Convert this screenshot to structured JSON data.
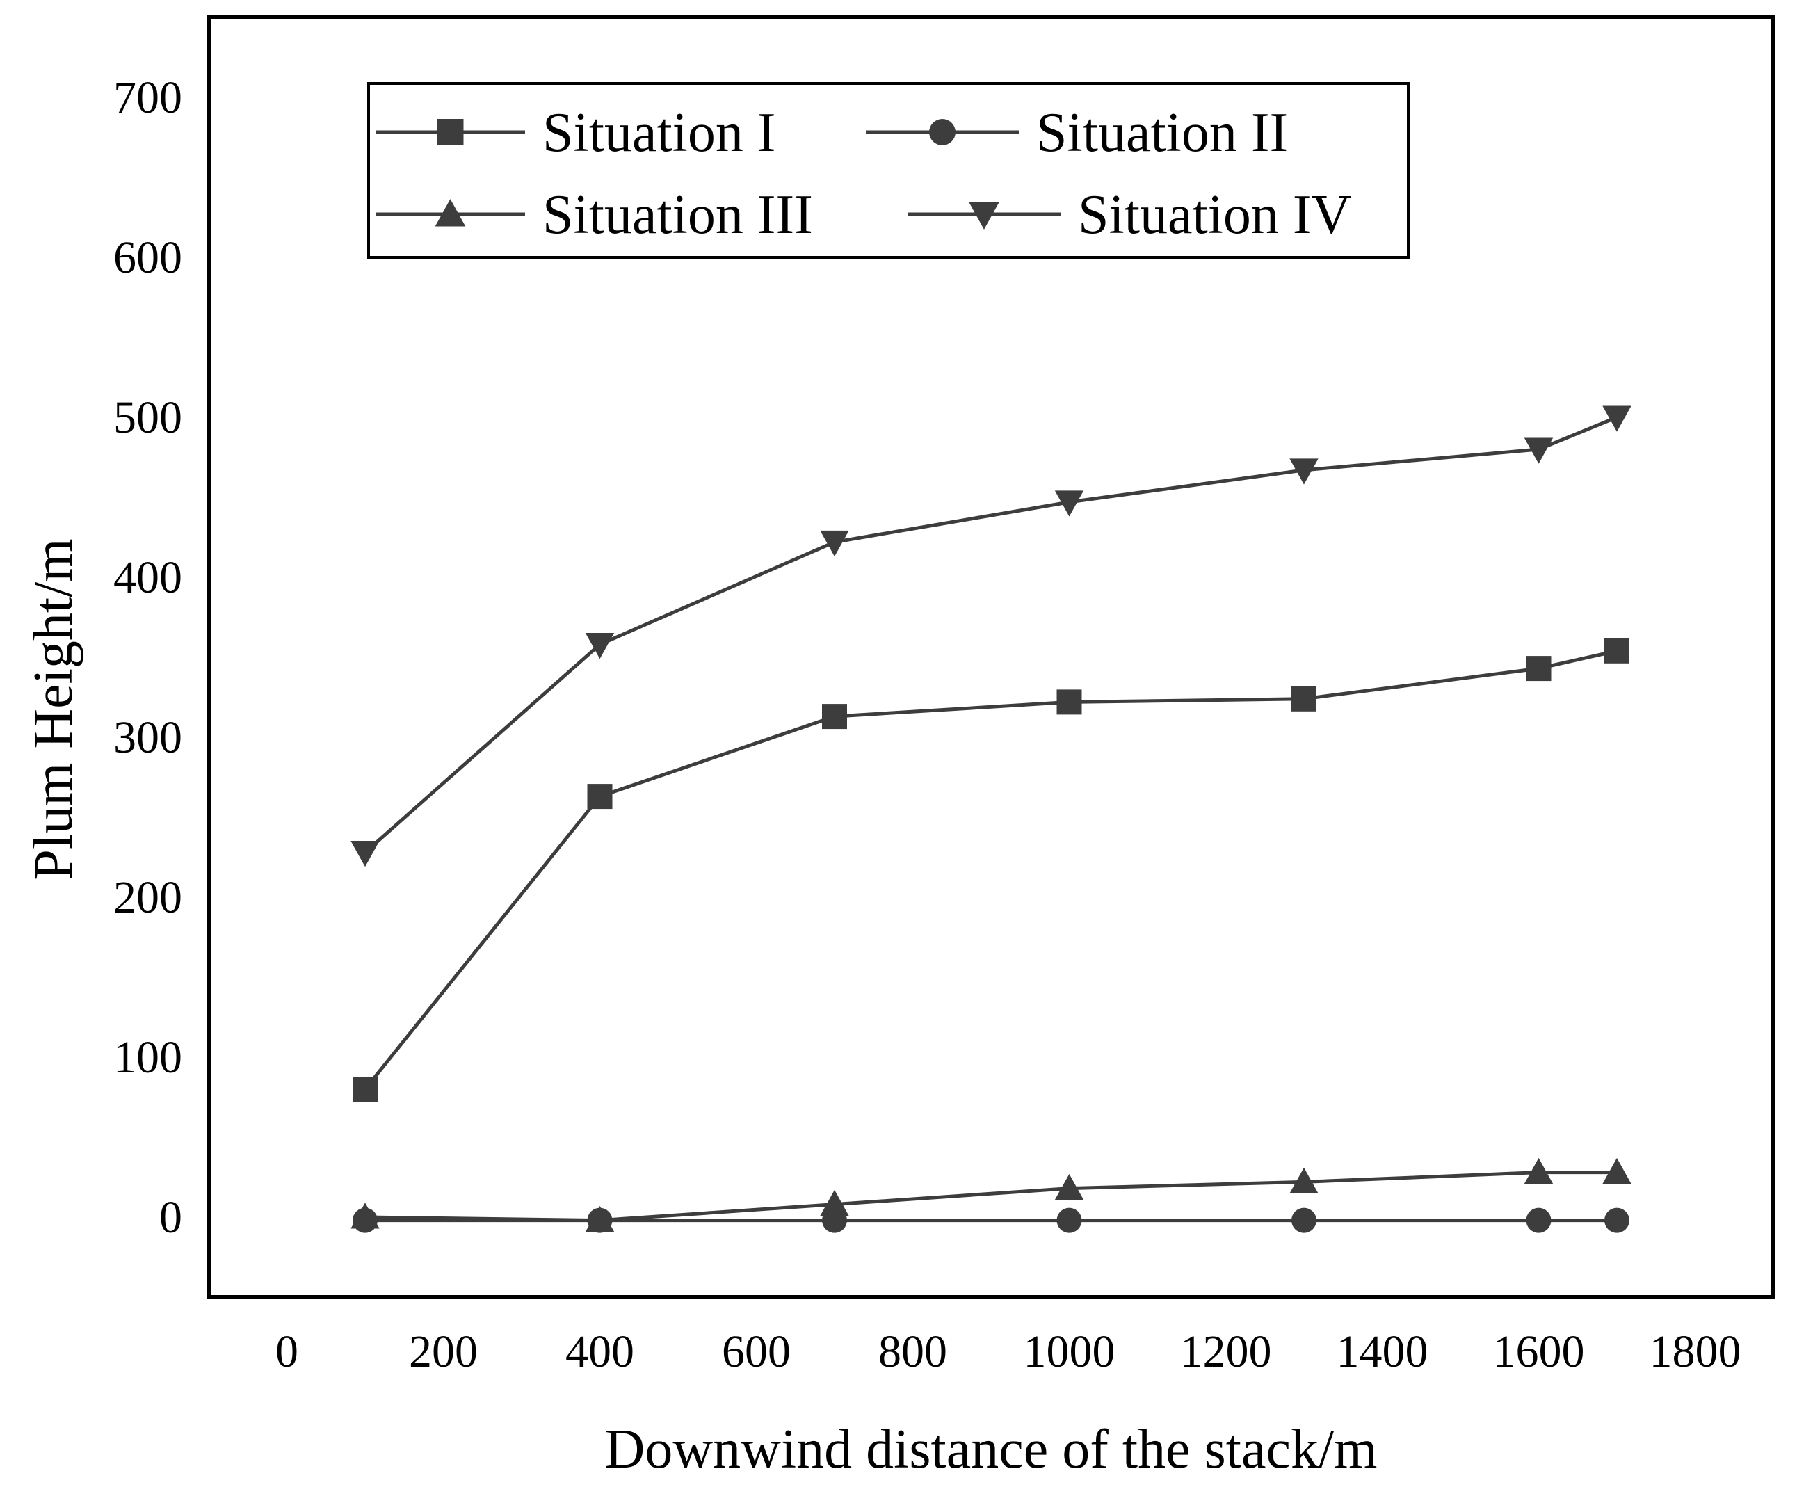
{
  "chart_data": {
    "type": "line",
    "title": "",
    "xlabel": "Downwind distance of the stack/m",
    "ylabel": "Plum Height/m",
    "xlim": [
      -100,
      1900
    ],
    "ylim": [
      -50,
      750
    ],
    "xticks": [
      0,
      200,
      400,
      600,
      800,
      1000,
      1200,
      1400,
      1600,
      1800
    ],
    "yticks": [
      0,
      100,
      200,
      300,
      400,
      500,
      600,
      700
    ],
    "xtick_labels": [
      "0",
      "200",
      "400",
      "600",
      "800",
      "1000",
      "1200",
      "1400",
      "1600",
      "1800"
    ],
    "ytick_labels": [
      "0",
      "100",
      "200",
      "300",
      "400",
      "500",
      "600",
      "700"
    ],
    "legend_position": "top-left",
    "line_color": "#3d3d3d",
    "series": [
      {
        "name": "Situation I",
        "marker": "square",
        "x": [
          100,
          400,
          700,
          1000,
          1300,
          1600,
          1700
        ],
        "y": [
          80,
          263,
          313,
          322,
          324,
          343,
          354
        ]
      },
      {
        "name": "Situation II",
        "marker": "circle",
        "x": [
          100,
          400,
          700,
          1000,
          1300,
          1600,
          1700
        ],
        "y": [
          -2,
          -2,
          -2,
          -2,
          -2,
          -2,
          -2
        ]
      },
      {
        "name": "Situation III",
        "marker": "triangle-up",
        "x": [
          100,
          400,
          700,
          1000,
          1300,
          1600,
          1700
        ],
        "y": [
          0,
          -2,
          8,
          18,
          22,
          28,
          28
        ]
      },
      {
        "name": "Situation IV",
        "marker": "triangle-down",
        "x": [
          100,
          400,
          700,
          1000,
          1300,
          1600,
          1700
        ],
        "y": [
          228,
          358,
          422,
          447,
          467,
          480,
          500
        ]
      }
    ]
  }
}
